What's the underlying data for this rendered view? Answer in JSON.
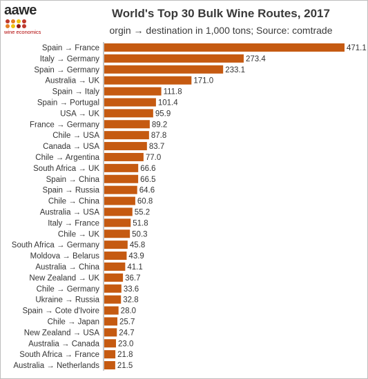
{
  "logo": {
    "text": "aawe",
    "subtext": "wine economics",
    "dot_colors": [
      "#c0392b",
      "#e67e22",
      "#f1c40f",
      "#c0392b",
      "#e67e22",
      "#f1c40f",
      "#8e1b1b",
      "#c0392b"
    ]
  },
  "chart_data": {
    "type": "bar",
    "orientation": "horizontal",
    "title": "World's Top 30 Bulk Wine Routes, 2017",
    "subtitle": "orgin → destination in 1,000 tons; Source: comtrade",
    "bar_color": "#c55a11",
    "xlim": [
      0,
      471.1
    ],
    "grid": false,
    "categories": [
      "Spain → France",
      "Italy → Germany",
      "Spain → Germany",
      "Australia → UK",
      "Spain → Italy",
      "Spain → Portugal",
      "USA → UK",
      "France → Germany",
      "Chile → USA",
      "Canada → USA",
      "Chile → Argentina",
      "South Africa → UK",
      "Spain → China",
      "Spain → Russia",
      "Chile → China",
      "Australia → USA",
      "Italy → France",
      "Chile → UK",
      "South Africa → Germany",
      "Moldova → Belarus",
      "Australia → China",
      "New Zealand → UK",
      "Chile → Germany",
      "Ukraine → Russia",
      "Spain → Cote d'Ivoire",
      "Chile → Japan",
      "New Zealand → USA",
      "Australia → Canada",
      "South Africa → France",
      "Australia → Netherlands"
    ],
    "values": [
      471.1,
      273.4,
      233.1,
      171.0,
      111.8,
      101.4,
      95.9,
      89.2,
      87.8,
      83.7,
      77.0,
      66.6,
      66.5,
      64.6,
      60.8,
      55.2,
      51.8,
      50.3,
      45.8,
      43.9,
      41.1,
      36.7,
      33.6,
      32.8,
      28.0,
      25.7,
      24.7,
      23.0,
      21.8,
      21.5
    ],
    "value_labels": [
      "471.1",
      "273.4",
      "233.1",
      "171.0",
      "111.8",
      "101.4",
      "95.9",
      "89.2",
      "87.8",
      "83.7",
      "77.0",
      "66.6",
      "66.5",
      "64.6",
      "60.8",
      "55.2",
      "51.8",
      "50.3",
      "45.8",
      "43.9",
      "41.1",
      "36.7",
      "33.6",
      "32.8",
      "28.0",
      "25.7",
      "24.7",
      "23.0",
      "21.8",
      "21.5"
    ]
  }
}
